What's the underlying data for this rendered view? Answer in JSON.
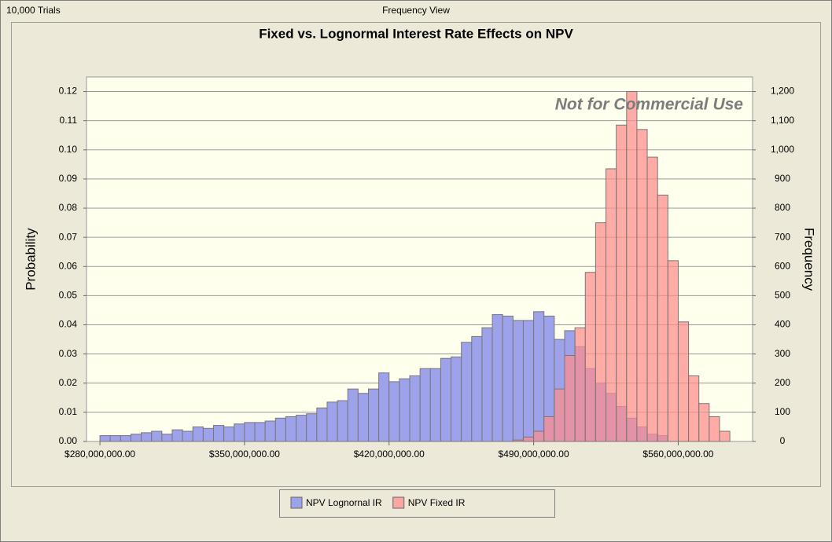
{
  "header": {
    "trials": "10,000 Trials",
    "view": "Frequency View"
  },
  "chart_data": {
    "type": "histogram",
    "title": "Fixed vs. Lognormal Interest Rate Effects on NPV",
    "watermark": "Not for Commercial Use",
    "ylabel": "Probability",
    "y2label": "Frequency",
    "xlim": [
      273500000,
      596000000
    ],
    "xticks": [
      {
        "value": 280000000,
        "label": "$280,000,000.00"
      },
      {
        "value": 350000000,
        "label": "$350,000,000.00"
      },
      {
        "value": 420000000,
        "label": "$420,000,000.00"
      },
      {
        "value": 490000000,
        "label": "$490,000,000.00"
      },
      {
        "value": 560000000,
        "label": "$560,000,000.00"
      }
    ],
    "ylim": [
      0,
      0.125
    ],
    "yticks": [
      {
        "value": 0,
        "label": "0.00"
      },
      {
        "value": 0.01,
        "label": "0.01"
      },
      {
        "value": 0.02,
        "label": "0.02"
      },
      {
        "value": 0.03,
        "label": "0.03"
      },
      {
        "value": 0.04,
        "label": "0.04"
      },
      {
        "value": 0.05,
        "label": "0.05"
      },
      {
        "value": 0.06,
        "label": "0.06"
      },
      {
        "value": 0.07,
        "label": "0.07"
      },
      {
        "value": 0.08,
        "label": "0.08"
      },
      {
        "value": 0.09,
        "label": "0.09"
      },
      {
        "value": 0.1,
        "label": "0.10"
      },
      {
        "value": 0.11,
        "label": "0.11"
      },
      {
        "value": 0.12,
        "label": "0.12"
      }
    ],
    "y2lim": [
      0,
      1250
    ],
    "y2ticks": [
      0,
      100,
      200,
      300,
      400,
      500,
      600,
      700,
      800,
      900,
      {
        "value": 1000,
        "label": "1,000"
      },
      {
        "value": 1100,
        "label": "1,100"
      },
      {
        "value": 1200,
        "label": "1,200"
      }
    ],
    "grid": true,
    "series": [
      {
        "name": "NPV Lognornal IR",
        "color": "#9ea2ea",
        "opacity": 1,
        "bins": [
          280000000,
          285000000,
          290000000,
          295000000,
          300000000,
          305000000,
          310000000,
          315000000,
          320000000,
          325000000,
          330000000,
          335000000,
          340000000,
          345000000,
          350000000,
          355000000,
          360000000,
          365000000,
          370000000,
          375000000,
          380000000,
          385000000,
          390000000,
          395000000,
          400000000,
          405000000,
          410000000,
          415000000,
          420000000,
          425000000,
          430000000,
          435000000,
          440000000,
          445000000,
          450000000,
          455000000,
          460000000,
          465000000,
          470000000,
          475000000,
          480000000,
          485000000,
          490000000,
          495000000,
          500000000,
          505000000,
          510000000,
          515000000,
          520000000,
          525000000,
          530000000,
          535000000,
          540000000,
          545000000,
          550000000,
          555000000
        ],
        "values": [
          0.002,
          0.002,
          0.002,
          0.0025,
          0.003,
          0.0035,
          0.0025,
          0.004,
          0.0035,
          0.005,
          0.0045,
          0.0055,
          0.005,
          0.006,
          0.0065,
          0.0065,
          0.007,
          0.008,
          0.0085,
          0.009,
          0.0095,
          0.0115,
          0.0135,
          0.014,
          0.018,
          0.0165,
          0.018,
          0.0235,
          0.0205,
          0.0215,
          0.0225,
          0.025,
          0.025,
          0.0285,
          0.029,
          0.034,
          0.036,
          0.039,
          0.0435,
          0.043,
          0.0415,
          0.0415,
          0.0445,
          0.043,
          0.035,
          0.038,
          0.0325,
          0.025,
          0.02,
          0.0165,
          0.012,
          0.008,
          0.005,
          0.0025,
          0.002
        ]
      },
      {
        "name": "NPV Fixed IR",
        "color": "#ff8c8c",
        "opacity": 0.72,
        "bins": [
          480000000,
          485000000,
          490000000,
          495000000,
          500000000,
          505000000,
          510000000,
          515000000,
          520000000,
          525000000,
          530000000,
          535000000,
          540000000,
          545000000,
          550000000,
          555000000,
          560000000,
          565000000,
          570000000,
          575000000,
          580000000,
          585000000
        ],
        "values": [
          0.0005,
          0.0015,
          0.0035,
          0.0085,
          0.018,
          0.0295,
          0.039,
          0.058,
          0.075,
          0.0935,
          0.1085,
          0.12,
          0.107,
          0.0975,
          0.0845,
          0.062,
          0.041,
          0.0225,
          0.013,
          0.0085,
          0.0035
        ]
      }
    ]
  }
}
